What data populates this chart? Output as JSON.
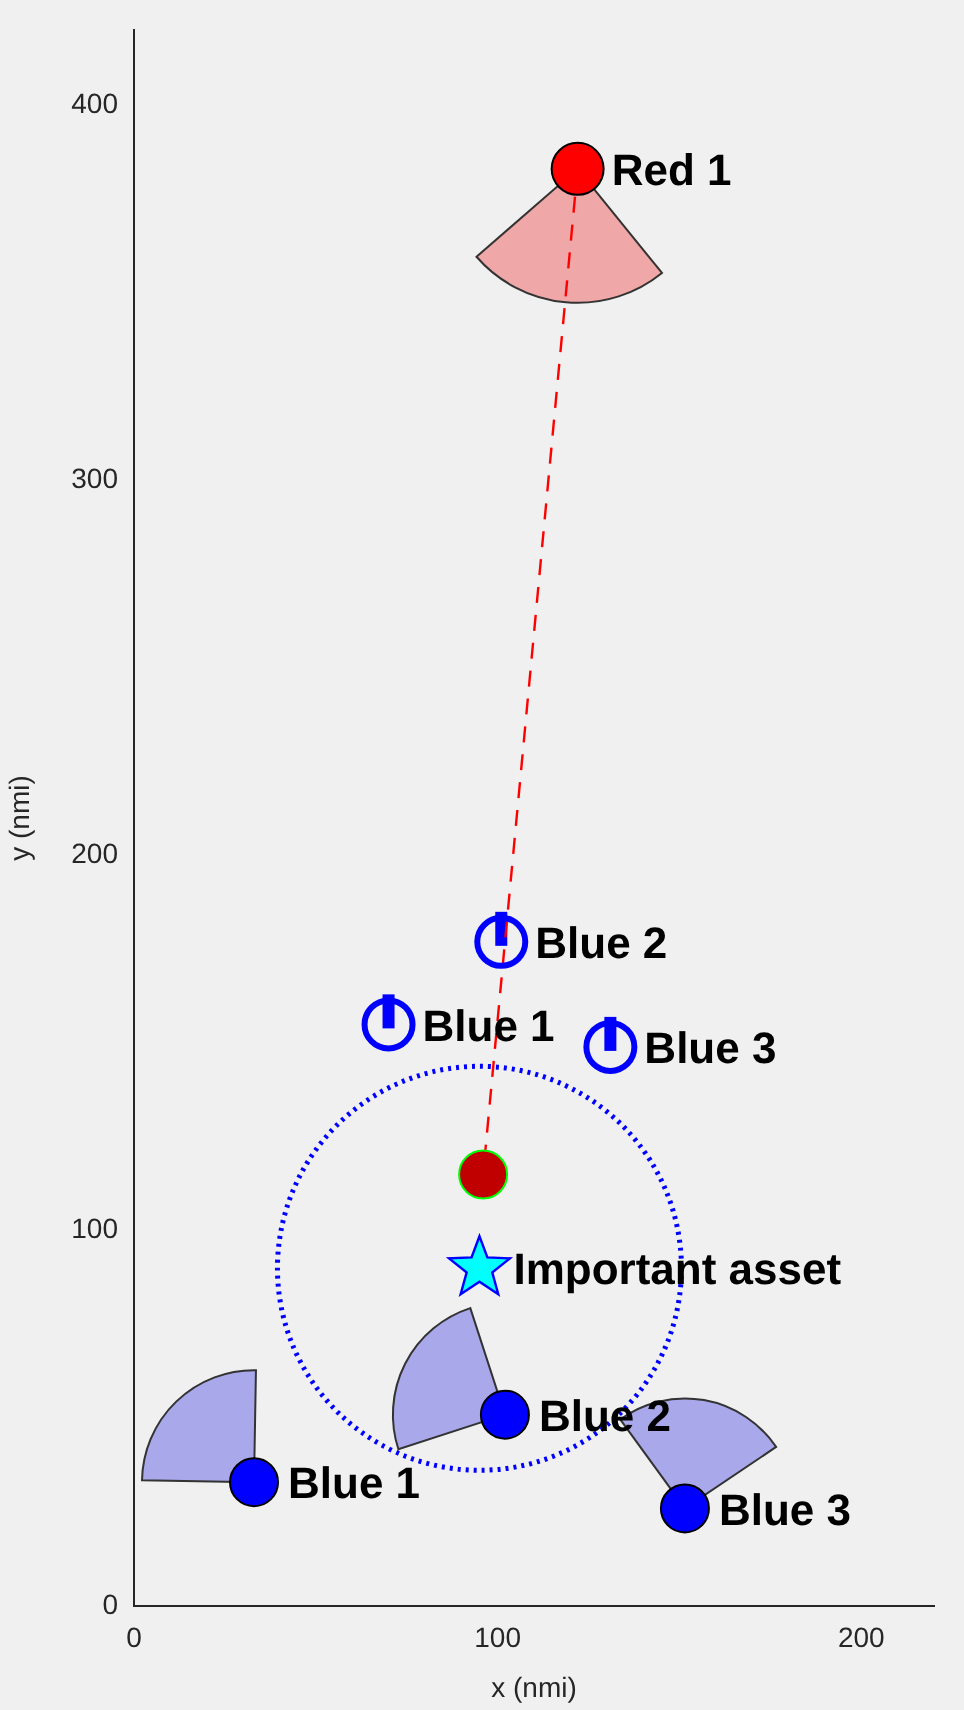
{
  "chart_data": {
    "type": "scatter",
    "xlabel": "x (nmi)",
    "ylabel": "y (nmi)",
    "xlim": [
      0,
      220
    ],
    "ylim": [
      0,
      420
    ],
    "xticks": [
      0,
      100,
      200
    ],
    "yticks": [
      0,
      100,
      200,
      300,
      400
    ],
    "legend": false,
    "series": [
      {
        "type": "scatter",
        "color": "#ff0000",
        "marker": "circle",
        "x": [
          122
        ],
        "values": [
          383
        ]
      },
      {
        "type": "line",
        "color": "#ff0000",
        "line_style": "dashed",
        "marker": "none",
        "x": [
          122,
          96
        ],
        "values": [
          383,
          115
        ]
      },
      {
        "type": "scatter",
        "color": "#c00000",
        "marker": "circle",
        "x": [
          96
        ],
        "values": [
          115
        ]
      },
      {
        "type": "scatter",
        "color": "#00ffff",
        "marker": "star",
        "x": [
          95
        ],
        "values": [
          90
        ]
      },
      {
        "type": "scatter",
        "color": "#0000ff",
        "marker": "circle",
        "x": [
          33,
          102,
          151.5
        ],
        "values": [
          33,
          51,
          26
        ]
      },
      {
        "type": "scatter",
        "color": "#0000ff",
        "marker": "circle",
        "x": [
          70,
          101,
          131
        ],
        "values": [
          155,
          177,
          149
        ]
      }
    ],
    "annotations": [
      {
        "text": "Red 1",
        "x": 122,
        "y": 383
      },
      {
        "text": "Important asset",
        "x": 95,
        "y": 90
      },
      {
        "text": "Blue 1",
        "x": 33,
        "y": 33
      },
      {
        "text": "Blue 2",
        "x": 102,
        "y": 51
      },
      {
        "text": "Blue 3",
        "x": 151.5,
        "y": 26
      },
      {
        "text": "Blue 1",
        "x": 70,
        "y": 155
      },
      {
        "text": "Blue 2",
        "x": 101,
        "y": 177
      },
      {
        "text": "Blue 3",
        "x": 131,
        "y": 149
      }
    ]
  }
}
